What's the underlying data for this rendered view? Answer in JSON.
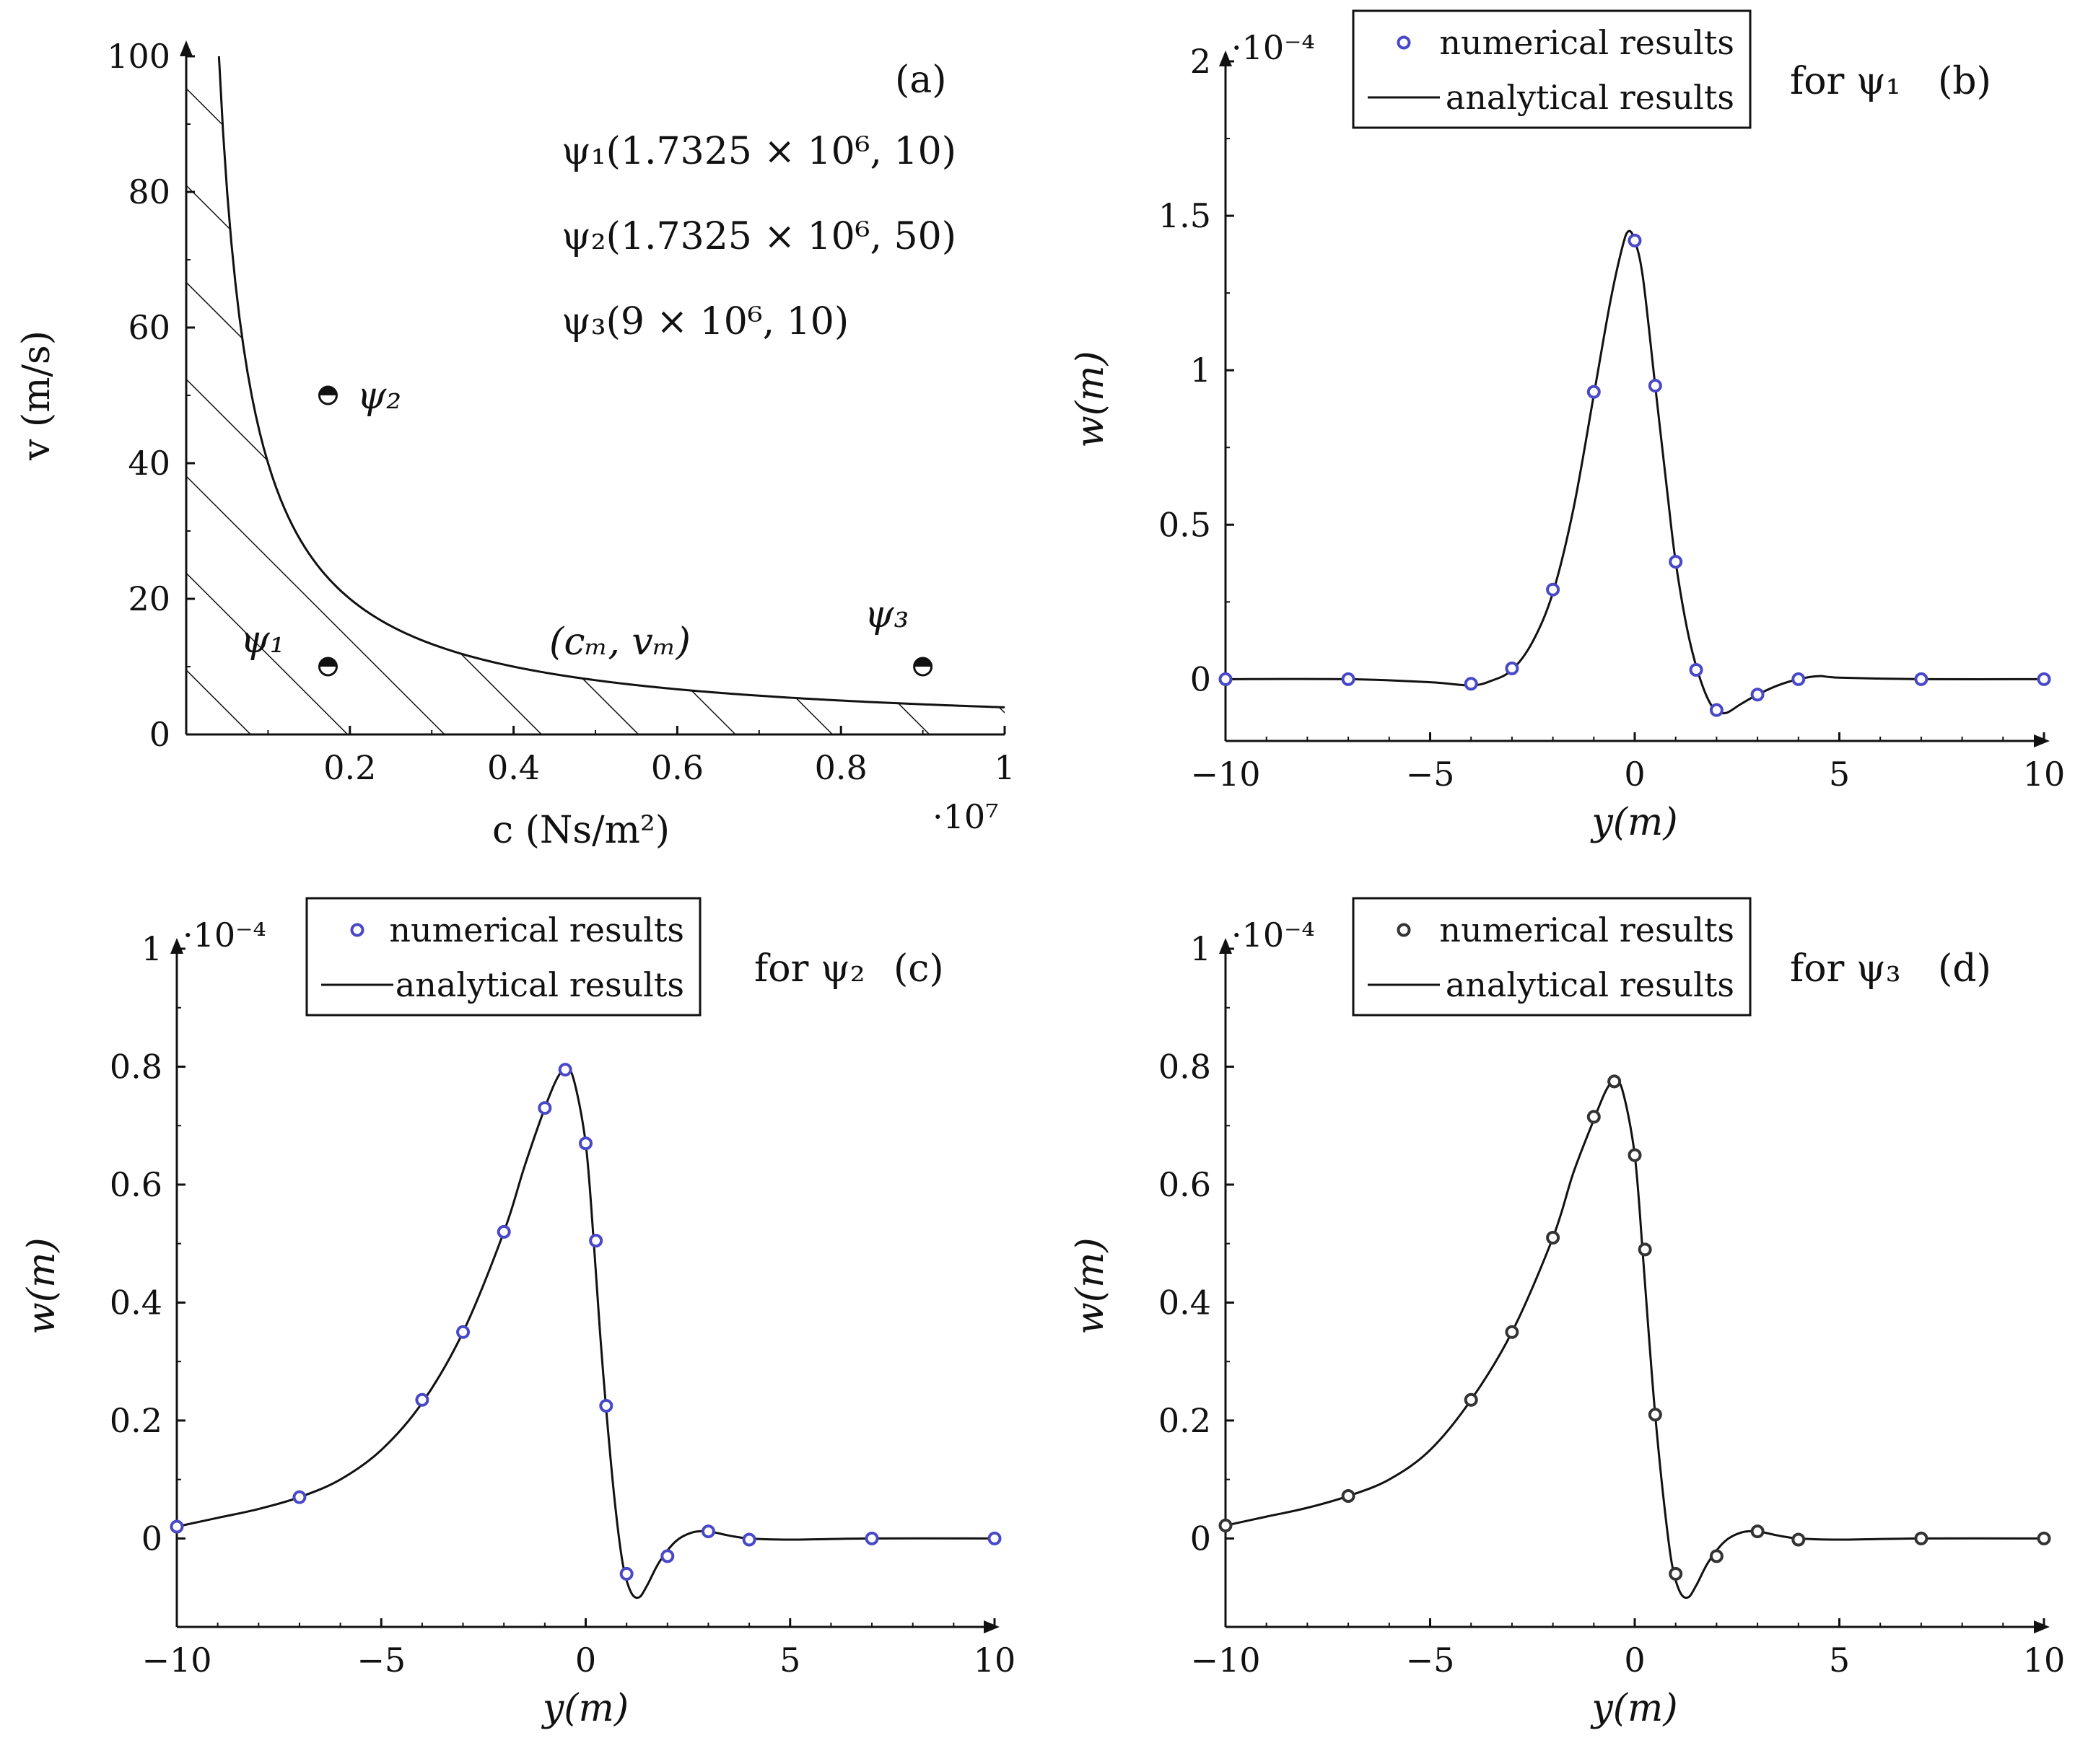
{
  "chart_data": [
    {
      "id": "a",
      "type": "area",
      "panel_label": "(a)",
      "xlabel": "c (Ns/m²)",
      "ylabel": "v (m/s)",
      "xlim": [
        0,
        10000000
      ],
      "ylim": [
        0,
        100
      ],
      "x_multiplier": "·10⁷",
      "xticks": [
        0.2,
        0.4,
        0.6,
        0.8,
        1
      ],
      "xtick_labels": [
        "0.2",
        "0.4",
        "0.6",
        "0.8",
        "1"
      ],
      "yticks": [
        0,
        20,
        40,
        60,
        80,
        100
      ],
      "ytick_labels": [
        "0",
        "20",
        "40",
        "60",
        "80",
        "100"
      ],
      "boundary_curve": {
        "name": "(c_m, v_m)",
        "label": "(cₘ, vₘ)",
        "constant_cv": 40000000,
        "x_range": [
          400000,
          10000000
        ]
      },
      "region": "hatched area below the curve",
      "points": [
        {
          "name": "ψ1",
          "label": "ψ₁",
          "c": 1732500,
          "v": 10,
          "legend_text": "ψ₁(1.7325 × 10⁶, 10)"
        },
        {
          "name": "ψ2",
          "label": "ψ₂",
          "c": 1732500,
          "v": 50,
          "legend_text": "ψ₂(1.7325 × 10⁶, 50)"
        },
        {
          "name": "ψ3",
          "label": "ψ₃",
          "c": 9000000,
          "v": 10,
          "legend_text": "ψ₃(9 × 10⁶, 10)"
        }
      ]
    },
    {
      "id": "b",
      "type": "line",
      "panel_label": "(b)",
      "caption": "for ψ₁",
      "xlabel": "y(m)",
      "ylabel": "w(m)",
      "y_multiplier": "·10⁻⁴",
      "xlim": [
        -10,
        10
      ],
      "ylim": [
        -0.2,
        2
      ],
      "xticks": [
        -10,
        -5,
        0,
        5,
        10
      ],
      "xtick_labels": [
        "−10",
        "−5",
        "0",
        "5",
        "10"
      ],
      "yticks": [
        0,
        0.5,
        1,
        1.5,
        2
      ],
      "ytick_labels": [
        "0",
        "0.5",
        "1",
        "1.5",
        "2"
      ],
      "legend": [
        "numerical results",
        "analytical results"
      ],
      "marker_color": "#4848c8",
      "series": [
        {
          "name": "analytical results",
          "x": [
            -10,
            -7,
            -5,
            -4,
            -3.5,
            -3,
            -2.5,
            -2,
            -1.5,
            -1,
            -0.6,
            -0.3,
            -0.15,
            0,
            0.2,
            0.5,
            0.8,
            1,
            1.3,
            1.6,
            1.9,
            2.2,
            2.6,
            3,
            3.5,
            4,
            4.5,
            5,
            7,
            10
          ],
          "y": [
            0,
            0,
            -0.01,
            -0.02,
            -0.005,
            0.03,
            0.12,
            0.28,
            0.55,
            0.92,
            1.22,
            1.4,
            1.45,
            1.42,
            1.3,
            0.95,
            0.6,
            0.38,
            0.15,
            0.0,
            -0.09,
            -0.11,
            -0.08,
            -0.05,
            -0.02,
            0.0,
            0.01,
            0.005,
            0,
            0
          ]
        },
        {
          "name": "numerical results",
          "x": [
            -10,
            -7,
            -4,
            -3,
            -2,
            -1,
            0,
            0.5,
            1,
            1.5,
            2,
            3,
            4,
            7,
            10
          ],
          "y": [
            0,
            0,
            -0.015,
            0.035,
            0.29,
            0.93,
            1.42,
            0.95,
            0.38,
            0.03,
            -0.1,
            -0.05,
            0.0,
            0,
            0
          ]
        }
      ]
    },
    {
      "id": "c",
      "type": "line",
      "panel_label": "(c)",
      "caption": "for ψ₂",
      "xlabel": "y(m)",
      "ylabel": "w(m)",
      "y_multiplier": "·10⁻⁴",
      "xlim": [
        -10,
        10
      ],
      "ylim": [
        -0.15,
        1
      ],
      "xticks": [
        -10,
        -5,
        0,
        5,
        10
      ],
      "xtick_labels": [
        "−10",
        "−5",
        "0",
        "5",
        "10"
      ],
      "yticks": [
        0,
        0.2,
        0.4,
        0.6,
        0.8,
        1
      ],
      "ytick_labels": [
        "0",
        "0.2",
        "0.4",
        "0.6",
        "0.8",
        "1"
      ],
      "legend": [
        "numerical results",
        "analytical results"
      ],
      "marker_color": "#4848c8",
      "series": [
        {
          "name": "analytical results",
          "x": [
            -10,
            -9,
            -8,
            -7,
            -6,
            -5,
            -4,
            -3,
            -2,
            -1.5,
            -1,
            -0.7,
            -0.5,
            -0.3,
            0,
            0.2,
            0.35,
            0.5,
            0.7,
            0.9,
            1.1,
            1.3,
            1.5,
            1.8,
            2.2,
            2.6,
            3,
            3.5,
            4,
            5,
            7,
            10
          ],
          "y": [
            0.02,
            0.035,
            0.05,
            0.07,
            0.1,
            0.15,
            0.23,
            0.35,
            0.52,
            0.63,
            0.73,
            0.78,
            0.795,
            0.78,
            0.67,
            0.5,
            0.35,
            0.22,
            0.07,
            -0.04,
            -0.09,
            -0.1,
            -0.08,
            -0.04,
            -0.005,
            0.01,
            0.012,
            0.005,
            0.0,
            -0.002,
            0,
            0
          ]
        },
        {
          "name": "numerical results",
          "x": [
            -10,
            -7,
            -4,
            -3,
            -2,
            -1,
            -0.5,
            0,
            0.25,
            0.5,
            1,
            2,
            3,
            4,
            7,
            10
          ],
          "y": [
            0.02,
            0.07,
            0.235,
            0.35,
            0.52,
            0.73,
            0.795,
            0.67,
            0.505,
            0.225,
            -0.06,
            -0.03,
            0.012,
            -0.002,
            0,
            0
          ]
        }
      ]
    },
    {
      "id": "d",
      "type": "line",
      "panel_label": "(d)",
      "caption": "for ψ₃",
      "xlabel": "y(m)",
      "ylabel": "w(m)",
      "y_multiplier": "·10⁻⁴",
      "xlim": [
        -10,
        10
      ],
      "ylim": [
        -0.15,
        1
      ],
      "xticks": [
        -10,
        -5,
        0,
        5,
        10
      ],
      "xtick_labels": [
        "−10",
        "−5",
        "0",
        "5",
        "10"
      ],
      "yticks": [
        0,
        0.2,
        0.4,
        0.6,
        0.8,
        1
      ],
      "ytick_labels": [
        "0",
        "0.2",
        "0.4",
        "0.6",
        "0.8",
        "1"
      ],
      "legend": [
        "numerical results",
        "analytical results"
      ],
      "marker_color": "#333333",
      "series": [
        {
          "name": "analytical results",
          "x": [
            -10,
            -9,
            -8,
            -7,
            -6,
            -5,
            -4,
            -3,
            -2,
            -1.5,
            -1,
            -0.7,
            -0.5,
            -0.3,
            0,
            0.2,
            0.35,
            0.5,
            0.7,
            0.9,
            1.1,
            1.3,
            1.5,
            1.8,
            2.2,
            2.6,
            3,
            3.5,
            4,
            5,
            7,
            10
          ],
          "y": [
            0.022,
            0.037,
            0.052,
            0.072,
            0.1,
            0.15,
            0.235,
            0.35,
            0.51,
            0.62,
            0.71,
            0.76,
            0.775,
            0.76,
            0.65,
            0.48,
            0.34,
            0.21,
            0.07,
            -0.04,
            -0.09,
            -0.1,
            -0.08,
            -0.04,
            -0.005,
            0.01,
            0.012,
            0.005,
            0.0,
            -0.002,
            0,
            0
          ]
        },
        {
          "name": "numerical results",
          "x": [
            -10,
            -7,
            -4,
            -3,
            -2,
            -1,
            -0.5,
            0,
            0.25,
            0.5,
            1,
            2,
            3,
            4,
            7,
            10
          ],
          "y": [
            0.022,
            0.072,
            0.235,
            0.35,
            0.51,
            0.715,
            0.775,
            0.65,
            0.49,
            0.21,
            -0.06,
            -0.03,
            0.012,
            -0.002,
            0,
            0
          ]
        }
      ]
    }
  ]
}
